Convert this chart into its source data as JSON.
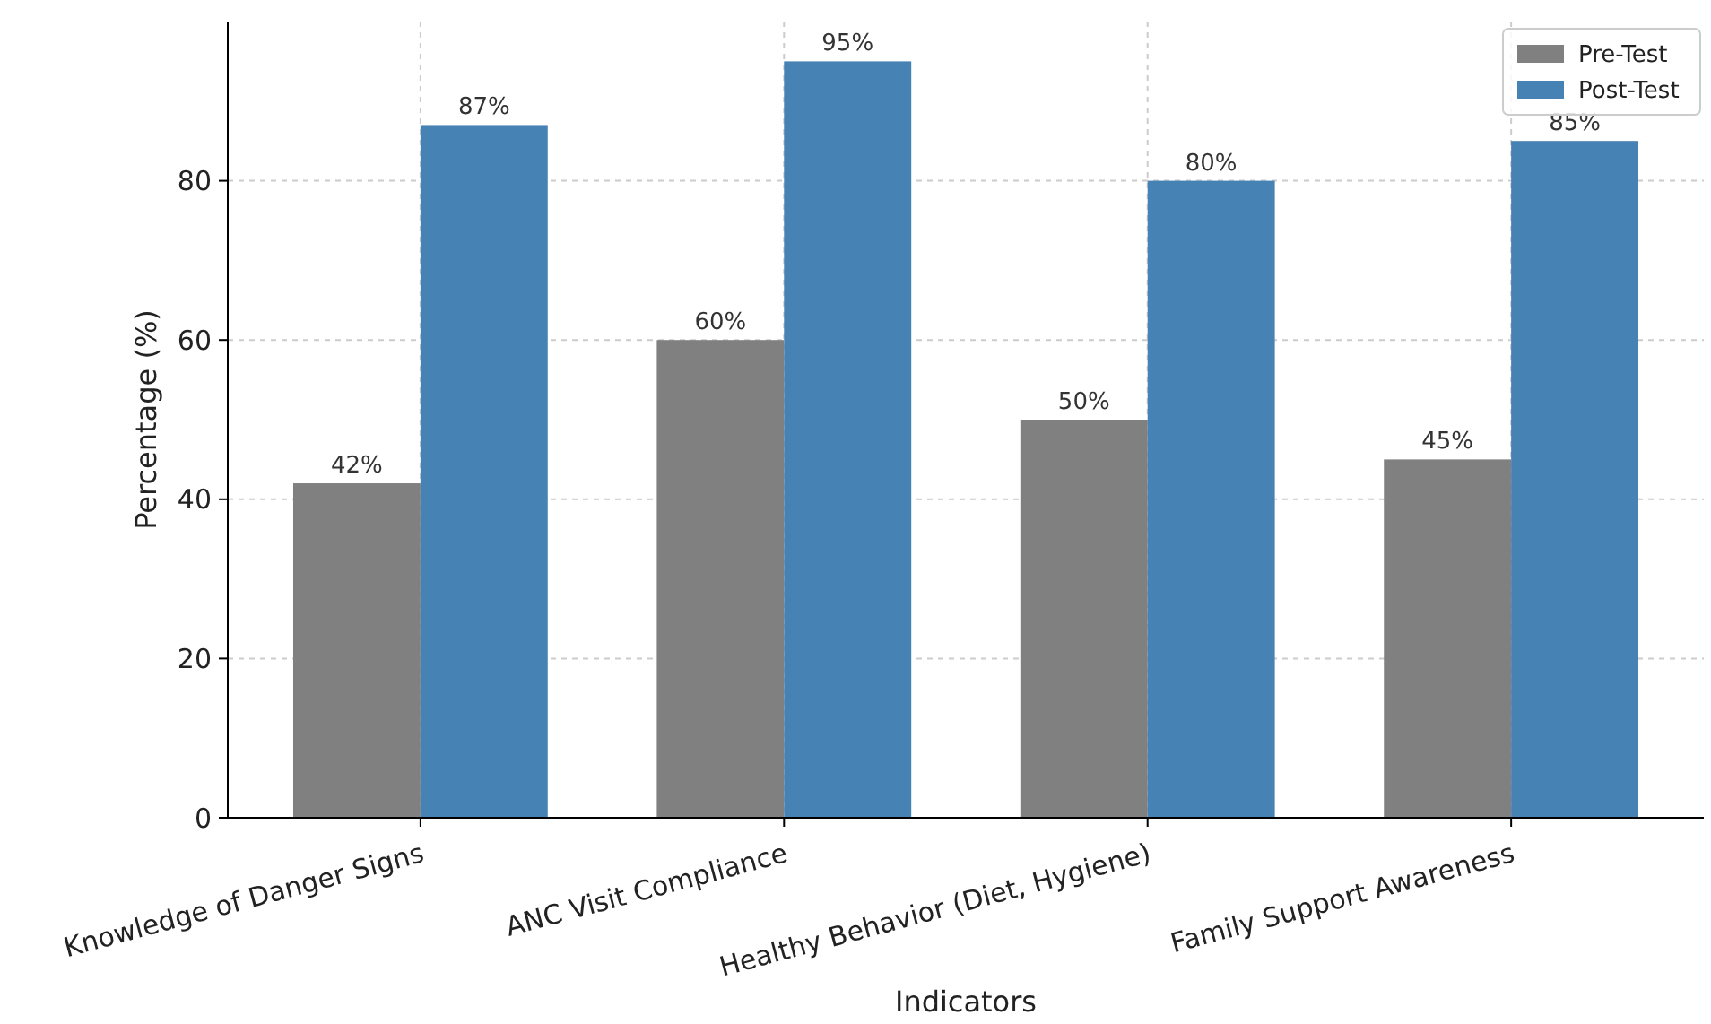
{
  "chart_data": {
    "type": "bar",
    "xlabel": "Indicators",
    "ylabel": "Percentage (%)",
    "categories": [
      "Knowledge of Danger Signs",
      "ANC Visit Compliance",
      "Healthy Behavior (Diet, Hygiene)",
      "Family Support Awareness"
    ],
    "series": [
      {
        "name": "Pre-Test",
        "color": "#808080",
        "values": [
          42,
          60,
          50,
          45
        ],
        "value_labels": [
          "42%",
          "60%",
          "50%",
          "45%"
        ]
      },
      {
        "name": "Post-Test",
        "color": "#4682b4",
        "values": [
          87,
          95,
          80,
          85
        ],
        "value_labels": [
          "87%",
          "95%",
          "80%",
          "85%"
        ]
      }
    ],
    "ylim": [
      0,
      100
    ],
    "yticks": [
      0,
      20,
      40,
      60,
      80
    ],
    "grid": true,
    "legend": "top right"
  }
}
